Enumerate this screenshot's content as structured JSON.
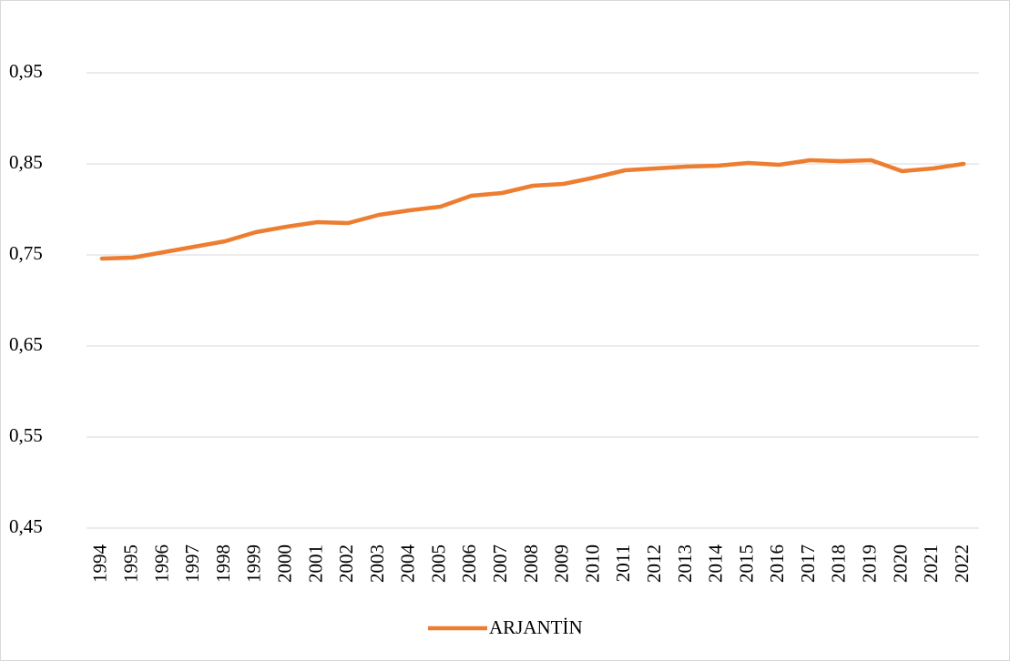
{
  "chart_data": {
    "type": "line",
    "categories": [
      "1994",
      "1995",
      "1996",
      "1997",
      "1998",
      "1999",
      "2000",
      "2001",
      "2002",
      "2003",
      "2004",
      "2005",
      "2006",
      "2007",
      "2008",
      "2009",
      "2010",
      "2011",
      "2012",
      "2013",
      "2014",
      "2015",
      "2016",
      "2017",
      "2018",
      "2019",
      "2020",
      "2021",
      "2022"
    ],
    "series": [
      {
        "name": "ARJANTİN",
        "color": "#ed7d31",
        "values": [
          0.746,
          0.747,
          0.753,
          0.759,
          0.765,
          0.775,
          0.781,
          0.786,
          0.785,
          0.794,
          0.799,
          0.803,
          0.815,
          0.818,
          0.826,
          0.828,
          0.835,
          0.843,
          0.845,
          0.847,
          0.848,
          0.851,
          0.849,
          0.854,
          0.853,
          0.854,
          0.842,
          0.845,
          0.85
        ]
      }
    ],
    "ylim": [
      0.45,
      0.95
    ],
    "yticks": [
      {
        "value": 0.45,
        "label": "0,45"
      },
      {
        "value": 0.55,
        "label": "0,55"
      },
      {
        "value": 0.65,
        "label": "0,65"
      },
      {
        "value": 0.75,
        "label": "0,75"
      },
      {
        "value": 0.85,
        "label": "0,85"
      },
      {
        "value": 0.95,
        "label": "0,95"
      }
    ],
    "grid": true,
    "legend": "bottom"
  }
}
